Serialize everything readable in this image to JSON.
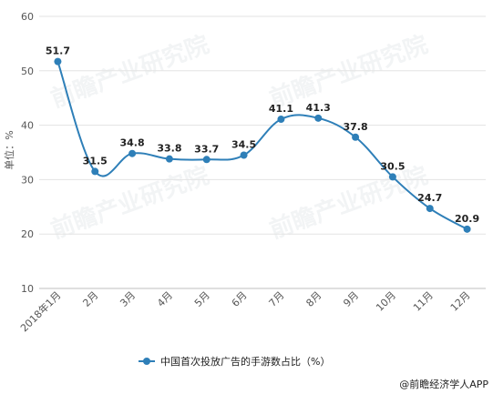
{
  "chart_data": {
    "type": "line",
    "categories": [
      "2018年1月",
      "2月",
      "3月",
      "4月",
      "5月",
      "6月",
      "7月",
      "8月",
      "9月",
      "10月",
      "11月",
      "12月"
    ],
    "series": [
      {
        "name": "中国首次投放广告的手游数占比（%）",
        "values": [
          51.7,
          31.5,
          34.8,
          33.8,
          33.7,
          34.5,
          41.1,
          41.3,
          37.8,
          30.5,
          24.7,
          20.9
        ]
      }
    ],
    "ylabel": "单位：%",
    "ylim": [
      10,
      60
    ],
    "yticks": [
      10,
      20,
      30,
      40,
      50,
      60
    ],
    "grid": true,
    "legend": "bottom",
    "line_color": "#2e7fb8"
  },
  "watermark": "前瞻产业研究院",
  "credit": "@前瞻经济学人APP"
}
